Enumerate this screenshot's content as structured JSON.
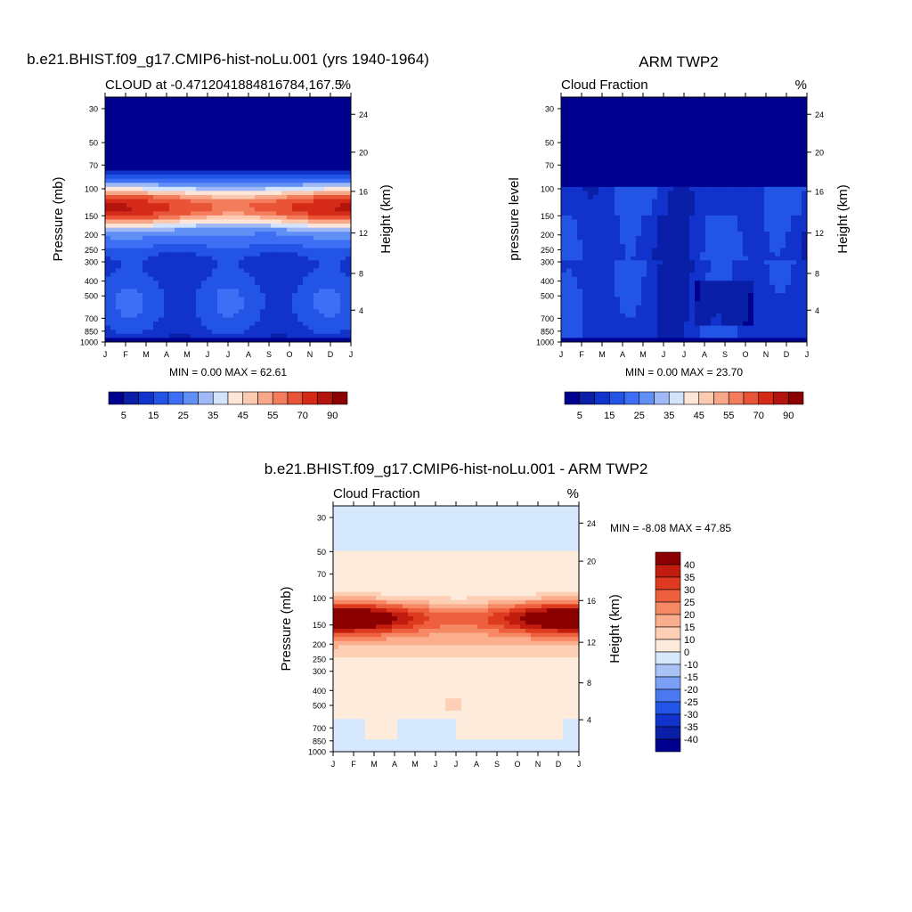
{
  "panels": [
    {
      "title": "b.e21.BHIST.f09_g17.CMIP6-hist-noLu.001 (yrs 1940-1964)",
      "subtitle_left": "CLOUD at -0.4712041884816784,167.5",
      "subtitle_right": "%",
      "ylabel_left": "Pressure (mb)",
      "ylabel_right": "Height (km)",
      "minmax": "MIN =   0.00 MAX =  62.61"
    },
    {
      "title": "ARM TWP2",
      "subtitle_left": "Cloud Fraction",
      "subtitle_right": "%",
      "ylabel_left": "pressure level",
      "ylabel_right": "Height (km)",
      "minmax": "MIN =   0.00 MAX =  23.70"
    },
    {
      "title": "b.e21.BHIST.f09_g17.CMIP6-hist-noLu.001 - ARM TWP2",
      "subtitle_left": "Cloud Fraction",
      "subtitle_right": "%",
      "ylabel_left": "Pressure (mb)",
      "ylabel_right": "Height (km)",
      "minmax": "MIN =  -8.08 MAX =  47.85"
    }
  ],
  "colors": {
    "seq": [
      "#00008f",
      "#0a1fa8",
      "#1133cc",
      "#2255e6",
      "#3d6ef5",
      "#6190f5",
      "#9eb9f5",
      "#d3e3fb",
      "#fde6d8",
      "#fcc9b1",
      "#f8a78a",
      "#f37c5c",
      "#ea5436",
      "#d62a18",
      "#b3140d",
      "#8b0000"
    ],
    "diff": [
      "#00008f",
      "#0a1fa8",
      "#1133cc",
      "#2255e6",
      "#4a78f0",
      "#7a9ff4",
      "#a9c3f7",
      "#d6e8fc",
      "#feebdc",
      "#fdd0b6",
      "#fbae8e",
      "#f78864",
      "#ee5f3e",
      "#dd3a1f",
      "#c01d0f",
      "#8b0000"
    ]
  },
  "chart_data": [
    {
      "type": "heatmap",
      "title": "b.e21.BHIST.f09_g17.CMIP6-hist-noLu.001 (yrs 1940-1964)",
      "subtitle": "CLOUD at -0.4712041884816784,167.5",
      "units": "%",
      "x": [
        "J",
        "F",
        "M",
        "A",
        "M",
        "J",
        "J",
        "A",
        "S",
        "O",
        "N",
        "D",
        "J"
      ],
      "y_pressure_mb": [
        30,
        50,
        70,
        100,
        150,
        200,
        250,
        300,
        400,
        500,
        700,
        850,
        1000
      ],
      "y_height_km": [
        24,
        20,
        16,
        12,
        8,
        4
      ],
      "ylabel": "Pressure (mb)",
      "ylabel_right": "Height (km)",
      "min": 0.0,
      "max": 62.61,
      "levels": [
        5,
        10,
        15,
        20,
        25,
        30,
        35,
        40,
        45,
        50,
        55,
        60,
        70,
        80,
        90
      ],
      "colorbar_labels": [
        "5",
        "15",
        "25",
        "35",
        "45",
        "55",
        "70",
        "90"
      ]
    },
    {
      "type": "heatmap",
      "title": "ARM TWP2",
      "subtitle": "Cloud Fraction",
      "units": "%",
      "x": [
        "J",
        "F",
        "M",
        "A",
        "M",
        "J",
        "J",
        "A",
        "S",
        "O",
        "N",
        "D",
        "J"
      ],
      "y_pressure_mb": [
        30,
        50,
        70,
        100,
        150,
        200,
        250,
        300,
        400,
        500,
        700,
        850,
        1000
      ],
      "y_height_km": [
        24,
        20,
        16,
        12,
        8,
        4
      ],
      "ylabel": "pressure level",
      "ylabel_right": "Height (km)",
      "min": 0.0,
      "max": 23.7,
      "levels": [
        5,
        10,
        15,
        20,
        25,
        30,
        35,
        40,
        45,
        50,
        55,
        60,
        70,
        80,
        90
      ],
      "colorbar_labels": [
        "5",
        "15",
        "25",
        "35",
        "45",
        "55",
        "70",
        "90"
      ]
    },
    {
      "type": "heatmap",
      "title": "b.e21.BHIST.f09_g17.CMIP6-hist-noLu.001 - ARM TWP2",
      "subtitle": "Cloud Fraction",
      "units": "%",
      "x": [
        "J",
        "F",
        "M",
        "A",
        "M",
        "J",
        "J",
        "A",
        "S",
        "O",
        "N",
        "D",
        "J"
      ],
      "y_pressure_mb": [
        30,
        50,
        70,
        100,
        150,
        200,
        250,
        300,
        400,
        500,
        700,
        850,
        1000
      ],
      "y_height_km": [
        24,
        20,
        16,
        12,
        8,
        4
      ],
      "ylabel": "Pressure (mb)",
      "ylabel_right": "Height (km)",
      "min": -8.08,
      "max": 47.85,
      "levels": [
        -40,
        -35,
        -30,
        -25,
        -20,
        -15,
        -10,
        0,
        10,
        15,
        20,
        25,
        30,
        35,
        40
      ],
      "colorbar_labels": [
        "40",
        "35",
        "30",
        "25",
        "20",
        "15",
        "10",
        "0",
        "-10",
        "-15",
        "-20",
        "-25",
        "-30",
        "-35",
        "-40"
      ]
    }
  ]
}
